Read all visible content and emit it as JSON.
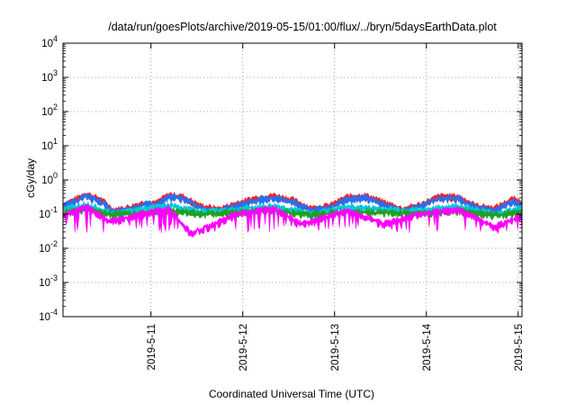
{
  "chart_data": {
    "type": "area",
    "title": "/data/run/goesPlots/archive/2019-05-15/01:00/flux/../bryn/5daysEarthData.plot",
    "xlabel": "Coordinated Universal Time (UTC)",
    "ylabel": "cGy/day",
    "x_scale": "time",
    "y_scale": "log",
    "xlim": [
      "2019-05-10T01:00",
      "2019-05-15T01:00"
    ],
    "ylim": [
      0.0001,
      10000
    ],
    "grid": true,
    "x_ticks": [
      {
        "value": "2019-05-11T00:00",
        "label": "2019-5-11"
      },
      {
        "value": "2019-05-12T00:00",
        "label": "2019-5-12"
      },
      {
        "value": "2019-05-13T00:00",
        "label": "2019-5-13"
      },
      {
        "value": "2019-05-14T00:00",
        "label": "2019-5-14"
      },
      {
        "value": "2019-05-15T00:00",
        "label": "2019-5-15"
      }
    ],
    "y_ticks": [
      {
        "value": 0.0001,
        "base": "10",
        "exp": "-4"
      },
      {
        "value": 0.001,
        "base": "10",
        "exp": "-3"
      },
      {
        "value": 0.01,
        "base": "10",
        "exp": "-2"
      },
      {
        "value": 0.1,
        "base": "10",
        "exp": "-1"
      },
      {
        "value": 1,
        "base": "10",
        "exp": "0"
      },
      {
        "value": 10,
        "base": "10",
        "exp": "1"
      },
      {
        "value": 100,
        "base": "10",
        "exp": "2"
      },
      {
        "value": 1000,
        "base": "10",
        "exp": "3"
      },
      {
        "value": 10000,
        "base": "10",
        "exp": "4"
      }
    ],
    "series": [
      {
        "color": "#ff2020",
        "min_level": 0.15,
        "max_level": 0.45,
        "values": [
          [
            0.0,
            0.22
          ],
          [
            0.1,
            0.28
          ],
          [
            0.25,
            0.45
          ],
          [
            0.42,
            0.3
          ],
          [
            0.55,
            0.15
          ],
          [
            0.72,
            0.18
          ],
          [
            0.9,
            0.26
          ],
          [
            1.0,
            0.23
          ],
          [
            1.15,
            0.42
          ],
          [
            1.3,
            0.38
          ],
          [
            1.5,
            0.2
          ],
          [
            1.7,
            0.16
          ],
          [
            1.9,
            0.24
          ],
          [
            2.1,
            0.34
          ],
          [
            2.3,
            0.4
          ],
          [
            2.5,
            0.3
          ],
          [
            2.7,
            0.17
          ],
          [
            2.9,
            0.2
          ],
          [
            3.1,
            0.37
          ],
          [
            3.3,
            0.4
          ],
          [
            3.5,
            0.25
          ],
          [
            3.7,
            0.16
          ],
          [
            3.9,
            0.22
          ],
          [
            4.1,
            0.38
          ],
          [
            4.3,
            0.38
          ],
          [
            4.5,
            0.2
          ],
          [
            4.7,
            0.17
          ],
          [
            4.9,
            0.32
          ],
          [
            5.0,
            0.26
          ]
        ]
      },
      {
        "color": "#2a6ef0",
        "min_level": 0.13,
        "max_level": 0.4,
        "values": [
          [
            0.0,
            0.2
          ],
          [
            0.1,
            0.25
          ],
          [
            0.25,
            0.4
          ],
          [
            0.42,
            0.27
          ],
          [
            0.55,
            0.13
          ],
          [
            0.72,
            0.16
          ],
          [
            0.9,
            0.23
          ],
          [
            1.0,
            0.21
          ],
          [
            1.15,
            0.37
          ],
          [
            1.3,
            0.34
          ],
          [
            1.5,
            0.18
          ],
          [
            1.7,
            0.14
          ],
          [
            1.9,
            0.21
          ],
          [
            2.1,
            0.3
          ],
          [
            2.3,
            0.35
          ],
          [
            2.5,
            0.27
          ],
          [
            2.7,
            0.15
          ],
          [
            2.9,
            0.18
          ],
          [
            3.1,
            0.33
          ],
          [
            3.3,
            0.35
          ],
          [
            3.5,
            0.22
          ],
          [
            3.7,
            0.14
          ],
          [
            3.9,
            0.2
          ],
          [
            4.1,
            0.34
          ],
          [
            4.3,
            0.34
          ],
          [
            4.5,
            0.18
          ],
          [
            4.7,
            0.15
          ],
          [
            4.9,
            0.28
          ],
          [
            5.0,
            0.23
          ]
        ]
      },
      {
        "color": "#00c8d8",
        "min_level": 0.12,
        "max_level": 0.22,
        "values": [
          [
            0.0,
            0.16
          ],
          [
            0.25,
            0.22
          ],
          [
            0.55,
            0.12
          ],
          [
            0.9,
            0.17
          ],
          [
            1.15,
            0.21
          ],
          [
            1.5,
            0.14
          ],
          [
            1.9,
            0.16
          ],
          [
            2.3,
            0.2
          ],
          [
            2.7,
            0.12
          ],
          [
            3.1,
            0.19
          ],
          [
            3.5,
            0.16
          ],
          [
            3.9,
            0.15
          ],
          [
            4.3,
            0.2
          ],
          [
            4.7,
            0.12
          ],
          [
            5.0,
            0.17
          ]
        ]
      },
      {
        "color": "#20a020",
        "min_level": 0.11,
        "max_level": 0.16,
        "values": [
          [
            0.0,
            0.13
          ],
          [
            0.25,
            0.16
          ],
          [
            0.55,
            0.11
          ],
          [
            0.9,
            0.13
          ],
          [
            1.15,
            0.15
          ],
          [
            1.5,
            0.12
          ],
          [
            1.9,
            0.13
          ],
          [
            2.3,
            0.15
          ],
          [
            2.7,
            0.11
          ],
          [
            3.1,
            0.14
          ],
          [
            3.5,
            0.13
          ],
          [
            3.9,
            0.12
          ],
          [
            4.3,
            0.15
          ],
          [
            4.7,
            0.11
          ],
          [
            5.0,
            0.13
          ]
        ]
      },
      {
        "color": "#ff00ff",
        "min_level": 0.03,
        "max_level": 0.2,
        "values": [
          [
            0.0,
            0.1
          ],
          [
            0.25,
            0.2
          ],
          [
            0.5,
            0.07
          ],
          [
            0.9,
            0.12
          ],
          [
            1.15,
            0.18
          ],
          [
            1.4,
            0.03
          ],
          [
            1.9,
            0.12
          ],
          [
            2.3,
            0.17
          ],
          [
            2.6,
            0.06
          ],
          [
            3.1,
            0.15
          ],
          [
            3.5,
            0.06
          ],
          [
            3.9,
            0.12
          ],
          [
            4.3,
            0.16
          ],
          [
            4.7,
            0.05
          ],
          [
            5.0,
            0.1
          ]
        ]
      }
    ]
  }
}
